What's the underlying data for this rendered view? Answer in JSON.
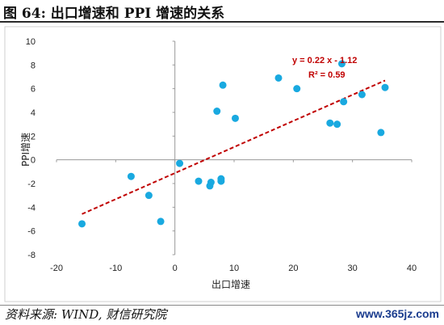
{
  "header": {
    "title": "图 64:  出口增速和 PPI 增速的关系"
  },
  "footer": {
    "source": "资料来源: WIND, 财信研究院",
    "watermark": "www.365jz.com"
  },
  "colors": {
    "points": "#19a9e0",
    "trend": "#c00000",
    "axes": "#9a9a9a"
  },
  "chart_data": {
    "type": "scatter",
    "title": "",
    "xlabel": "出口增速",
    "ylabel": "PPI增速",
    "xlim": [
      -20,
      40
    ],
    "ylim": [
      -8,
      10
    ],
    "x_ticks": [
      -20,
      -10,
      0,
      10,
      20,
      30,
      40
    ],
    "y_ticks": [
      -8,
      -6,
      -4,
      -2,
      0,
      2,
      4,
      6,
      8,
      10
    ],
    "grid": false,
    "series": [
      {
        "points": [
          {
            "x": -15.7,
            "y": -5.4
          },
          {
            "x": -7.4,
            "y": -1.4
          },
          {
            "x": -4.4,
            "y": -3.0
          },
          {
            "x": -2.4,
            "y": -5.2
          },
          {
            "x": 0.8,
            "y": -0.3
          },
          {
            "x": 4.0,
            "y": -1.8
          },
          {
            "x": 5.9,
            "y": -2.2
          },
          {
            "x": 6.1,
            "y": -1.9
          },
          {
            "x": 7.8,
            "y": -1.8
          },
          {
            "x": 7.8,
            "y": -1.6
          },
          {
            "x": 7.1,
            "y": 4.1
          },
          {
            "x": 8.1,
            "y": 6.3
          },
          {
            "x": 10.2,
            "y": 3.5
          },
          {
            "x": 17.5,
            "y": 6.9
          },
          {
            "x": 20.6,
            "y": 6.0
          },
          {
            "x": 26.2,
            "y": 3.1
          },
          {
            "x": 27.4,
            "y": 3.0
          },
          {
            "x": 28.2,
            "y": 8.1
          },
          {
            "x": 28.5,
            "y": 4.9
          },
          {
            "x": 31.6,
            "y": 5.5
          },
          {
            "x": 34.8,
            "y": 2.3
          },
          {
            "x": 35.5,
            "y": 6.1
          }
        ]
      }
    ],
    "trendline": {
      "slope": 0.22,
      "intercept": -1.12,
      "x_range": [
        -15.7,
        35.5
      ],
      "style": "dashed",
      "equation_label": "y = 0.22 x - 1.12",
      "r2_label": "R² = 0.59"
    }
  }
}
